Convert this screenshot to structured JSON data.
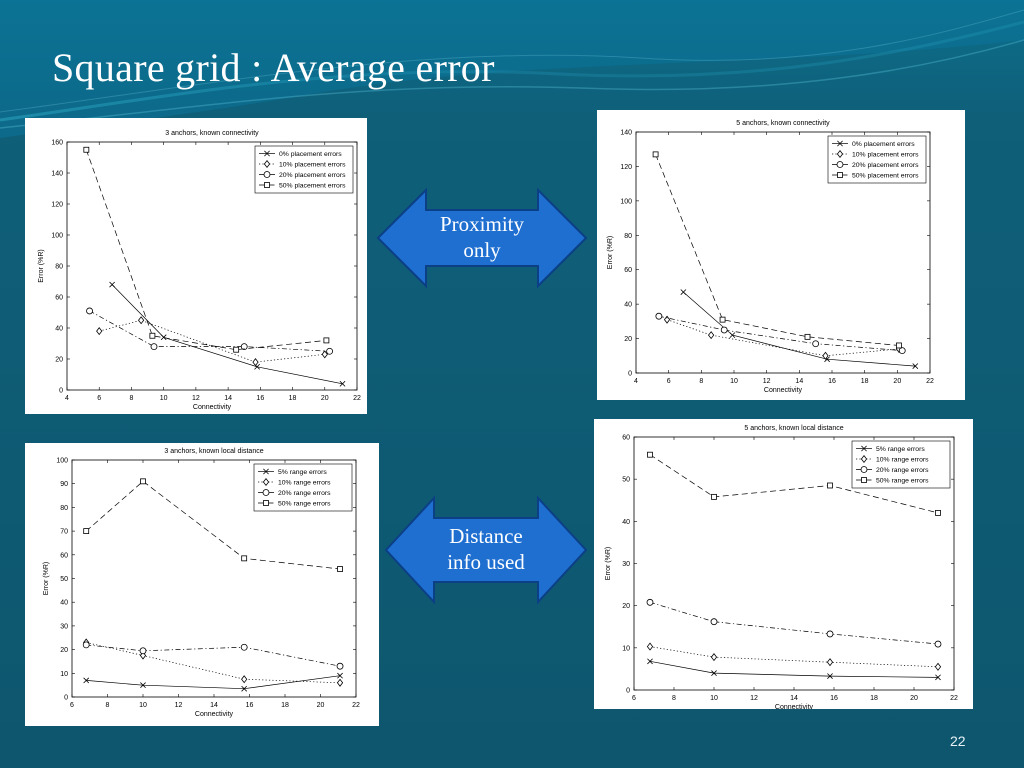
{
  "slide": {
    "title": "Square grid : Average error",
    "number": "22",
    "colors": {
      "background": "#0f5a73",
      "arrow_fill": "#1f6fd1",
      "arrow_stroke": "#0b3f86"
    }
  },
  "arrows": [
    {
      "lines": [
        "Proximity",
        "only"
      ]
    },
    {
      "lines": [
        "Distance",
        "info used"
      ]
    }
  ],
  "chart_data": [
    {
      "type": "line",
      "title": "3 anchors, known connectivity",
      "xlabel": "Connectivity",
      "ylabel": "Error (%R)",
      "xlim": [
        4,
        22
      ],
      "ylim": [
        0,
        160
      ],
      "xticks": [
        "4",
        "6",
        "8",
        "10",
        "12",
        "14",
        "16",
        "18",
        "20",
        "22"
      ],
      "yticks": [
        "0",
        "20",
        "40",
        "60",
        "80",
        "100",
        "120",
        "140",
        "160"
      ],
      "grid": false,
      "legend_position": "top-right",
      "series": [
        {
          "name": "0% placement errors",
          "marker": "x",
          "dash": "solid",
          "x": [
            6.8,
            10.0,
            15.8,
            21.1
          ],
          "y": [
            68,
            34,
            15,
            4
          ]
        },
        {
          "name": "10% placement errors",
          "marker": "diamond",
          "dash": "dotted",
          "x": [
            6.0,
            8.6,
            15.7,
            20.0
          ],
          "y": [
            38,
            45,
            18,
            23
          ]
        },
        {
          "name": "20% placement errors",
          "marker": "circle",
          "dash": "dashdot",
          "x": [
            5.4,
            9.4,
            15.0,
            20.3
          ],
          "y": [
            51,
            28,
            28,
            25
          ]
        },
        {
          "name": "50% placement errors",
          "marker": "square",
          "dash": "dashed",
          "x": [
            5.2,
            9.3,
            14.5,
            20.1
          ],
          "y": [
            155,
            35,
            26,
            32
          ]
        }
      ]
    },
    {
      "type": "line",
      "title": "5 anchors, known connectivity",
      "xlabel": "Connectivity",
      "ylabel": "Error (%R)",
      "xlim": [
        4,
        22
      ],
      "ylim": [
        0,
        140
      ],
      "xticks": [
        "4",
        "6",
        "8",
        "10",
        "12",
        "14",
        "16",
        "18",
        "20",
        "22"
      ],
      "yticks": [
        "0",
        "20",
        "40",
        "60",
        "80",
        "100",
        "120",
        "140"
      ],
      "grid": false,
      "legend_position": "top-right",
      "series": [
        {
          "name": "0% placement errors",
          "marker": "x",
          "dash": "solid",
          "x": [
            6.9,
            9.9,
            15.7,
            21.1
          ],
          "y": [
            47,
            22,
            8,
            4
          ]
        },
        {
          "name": "10% placement errors",
          "marker": "diamond",
          "dash": "dotted",
          "x": [
            5.9,
            8.6,
            15.6,
            20.1
          ],
          "y": [
            31,
            22,
            10,
            14
          ]
        },
        {
          "name": "20% placement errors",
          "marker": "circle",
          "dash": "dashdot",
          "x": [
            5.4,
            9.4,
            15.0,
            20.3
          ],
          "y": [
            33,
            25,
            17,
            13
          ]
        },
        {
          "name": "50% placement errors",
          "marker": "square",
          "dash": "dashed",
          "x": [
            5.2,
            9.3,
            14.5,
            20.1
          ],
          "y": [
            127,
            31,
            21,
            16
          ]
        }
      ]
    },
    {
      "type": "line",
      "title": "3 anchors, known local distance",
      "xlabel": "Connectivity",
      "ylabel": "Error (%R)",
      "xlim": [
        6,
        22
      ],
      "ylim": [
        0,
        100
      ],
      "xticks": [
        "6",
        "8",
        "10",
        "12",
        "14",
        "16",
        "18",
        "20",
        "22"
      ],
      "yticks": [
        "0",
        "10",
        "20",
        "30",
        "40",
        "50",
        "60",
        "70",
        "80",
        "90",
        "100"
      ],
      "grid": false,
      "legend_position": "top-right",
      "series": [
        {
          "name": "5% range errors",
          "marker": "x",
          "dash": "solid",
          "x": [
            6.8,
            10.0,
            15.7,
            21.1
          ],
          "y": [
            7,
            5,
            3.5,
            9
          ]
        },
        {
          "name": "10% range errors",
          "marker": "diamond",
          "dash": "dotted",
          "x": [
            6.8,
            10.0,
            15.7,
            21.1
          ],
          "y": [
            23,
            17.5,
            7.5,
            6
          ]
        },
        {
          "name": "20% range errors",
          "marker": "circle",
          "dash": "dashdot",
          "x": [
            6.8,
            10.0,
            15.7,
            21.1
          ],
          "y": [
            22,
            19.5,
            21,
            13
          ]
        },
        {
          "name": "50% range errors",
          "marker": "square",
          "dash": "dashed",
          "x": [
            6.8,
            10.0,
            15.7,
            21.1
          ],
          "y": [
            70,
            91,
            58.5,
            54
          ]
        }
      ]
    },
    {
      "type": "line",
      "title": "5 anchors, known local distance",
      "xlabel": "Connectivity",
      "ylabel": "Error (%R)",
      "xlim": [
        6,
        22
      ],
      "ylim": [
        0,
        60
      ],
      "xticks": [
        "6",
        "8",
        "10",
        "12",
        "14",
        "16",
        "18",
        "20",
        "22"
      ],
      "yticks": [
        "0",
        "10",
        "20",
        "30",
        "40",
        "50",
        "60"
      ],
      "grid": false,
      "legend_position": "top-right",
      "series": [
        {
          "name": "5% range errors",
          "marker": "x",
          "dash": "solid",
          "x": [
            6.8,
            10.0,
            15.8,
            21.2
          ],
          "y": [
            6.8,
            4.0,
            3.3,
            3.0
          ]
        },
        {
          "name": "10% range errors",
          "marker": "diamond",
          "dash": "dotted",
          "x": [
            6.8,
            10.0,
            15.8,
            21.2
          ],
          "y": [
            10.3,
            7.8,
            6.6,
            5.5
          ]
        },
        {
          "name": "20% range errors",
          "marker": "circle",
          "dash": "dashdot",
          "x": [
            6.8,
            10.0,
            15.8,
            21.2
          ],
          "y": [
            20.8,
            16.2,
            13.3,
            10.9
          ]
        },
        {
          "name": "50% range errors",
          "marker": "square",
          "dash": "dashed",
          "x": [
            6.8,
            10.0,
            15.8,
            21.2
          ],
          "y": [
            55.8,
            45.8,
            48.5,
            42.0
          ]
        }
      ]
    }
  ]
}
